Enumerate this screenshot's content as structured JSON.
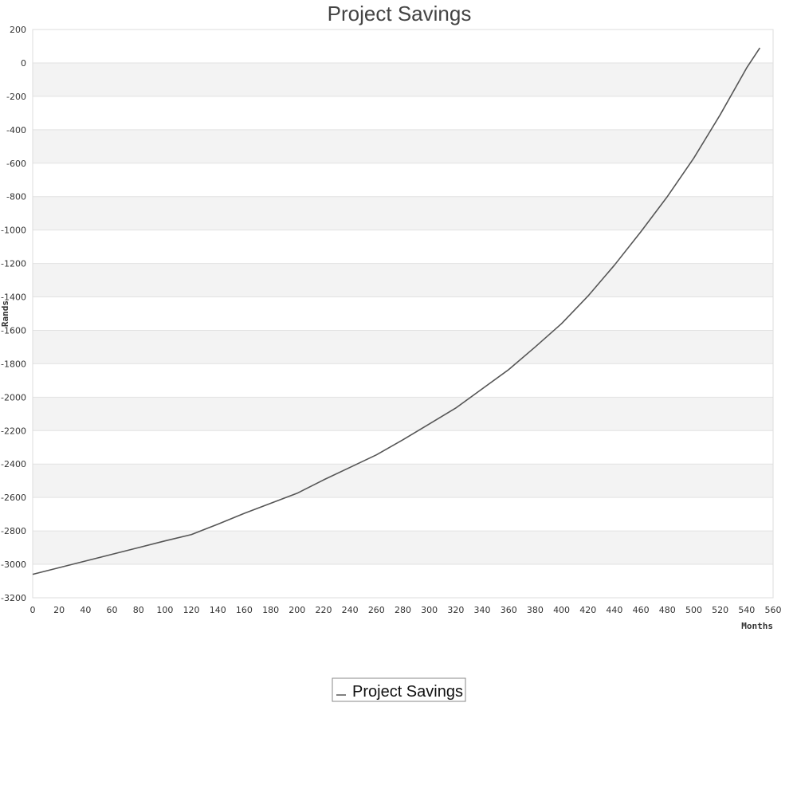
{
  "chart_data": {
    "type": "line",
    "title": "Project Savings",
    "xlabel": "Months",
    "ylabel": "Rands",
    "xlim": [
      0,
      560
    ],
    "ylim": [
      -3200,
      200
    ],
    "xticks": [
      0,
      20,
      40,
      60,
      80,
      100,
      120,
      140,
      160,
      180,
      200,
      220,
      240,
      260,
      280,
      300,
      320,
      340,
      360,
      380,
      400,
      420,
      440,
      460,
      480,
      500,
      520,
      540,
      560
    ],
    "yticks": [
      200,
      0,
      -200,
      -400,
      -600,
      -800,
      -1000,
      -1200,
      -1400,
      -1600,
      -1800,
      -2000,
      -2200,
      -2400,
      -2600,
      -2800,
      -3000,
      -3200
    ],
    "grid": true,
    "alternating_bands": true,
    "legend_position": "bottom-center",
    "series": [
      {
        "name": "Project Savings",
        "color": "#555555",
        "x": [
          0,
          20,
          40,
          60,
          80,
          100,
          120,
          140,
          160,
          180,
          200,
          220,
          240,
          260,
          280,
          300,
          320,
          340,
          360,
          380,
          400,
          420,
          440,
          460,
          480,
          500,
          520,
          540,
          550
        ],
        "y": [
          -3060,
          -3020,
          -2980,
          -2940,
          -2900,
          -2860,
          -2822,
          -2760,
          -2695,
          -2635,
          -2575,
          -2495,
          -2420,
          -2345,
          -2255,
          -2160,
          -2065,
          -1950,
          -1835,
          -1700,
          -1560,
          -1395,
          -1210,
          -1010,
          -800,
          -570,
          -310,
          -30,
          90
        ]
      }
    ]
  }
}
